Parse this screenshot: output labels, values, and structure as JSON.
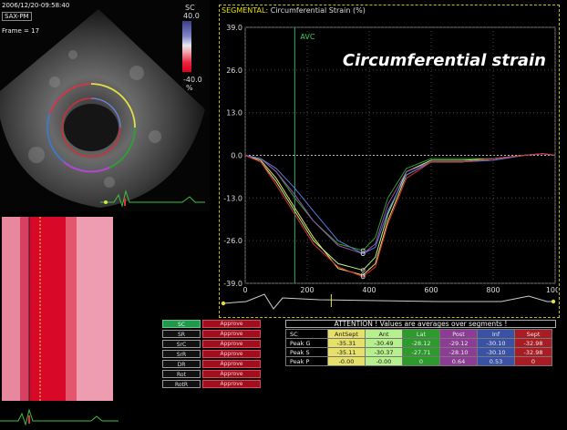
{
  "echo": {
    "timestamp": "2006/12/20-09:58:40",
    "view": "SAX-PM",
    "frame": "Frame = 17",
    "scale": {
      "label": "SC",
      "max": "40.0",
      "min": "-40.0",
      "unit": "%"
    }
  },
  "chart": {
    "header_label": "SEGMENTAL:",
    "header_title": "Circumferential Strain (%)",
    "overlay_title": "Circumferential strain",
    "marker_label": "AVC",
    "y_ticks": [
      "39.0",
      "26.0",
      "13.0",
      "0.0",
      "-13.0",
      "-26.0",
      "-39.0"
    ],
    "x_ticks": [
      "0",
      "200",
      "400",
      "600",
      "800",
      "1000"
    ]
  },
  "chart_data": {
    "type": "line",
    "title": "Circumferential Strain (%)",
    "xlim": [
      0,
      1000
    ],
    "ylim": [
      -39,
      39
    ],
    "marker_x": 160,
    "series": [
      {
        "color": "#e8e060",
        "x": [
          0,
          50,
          100,
          160,
          220,
          300,
          380,
          420,
          460,
          520,
          600,
          700,
          800,
          900,
          960,
          1000
        ],
        "y": [
          0,
          -1.5,
          -7,
          -16,
          -25,
          -34.5,
          -36.5,
          -33,
          -20,
          -6,
          -2,
          -2,
          -1,
          0,
          0.5,
          0
        ]
      },
      {
        "color": "#b6f08c",
        "x": [
          0,
          50,
          100,
          160,
          220,
          300,
          380,
          420,
          460,
          520,
          600,
          700,
          800,
          900,
          960,
          1000
        ],
        "y": [
          0,
          -2,
          -8,
          -17,
          -26,
          -33,
          -35,
          -31,
          -18,
          -5,
          -1.5,
          -1.5,
          -1,
          0,
          0.5,
          0
        ]
      },
      {
        "color": "#2ea02c",
        "x": [
          0,
          50,
          100,
          160,
          220,
          300,
          380,
          420,
          460,
          520,
          600,
          700,
          800,
          900,
          960,
          1000
        ],
        "y": [
          0,
          -1,
          -5,
          -13,
          -20,
          -27,
          -29,
          -25,
          -13,
          -4,
          -1,
          -1,
          -1,
          0,
          0.5,
          0
        ]
      },
      {
        "color": "#a050b0",
        "x": [
          0,
          50,
          100,
          160,
          220,
          300,
          380,
          420,
          460,
          520,
          600,
          700,
          800,
          900,
          960,
          1000
        ],
        "y": [
          0,
          -1,
          -5,
          -12,
          -20,
          -27.5,
          -30,
          -27,
          -15,
          -5,
          -2,
          -2,
          -1.5,
          0,
          0.5,
          0
        ]
      },
      {
        "color": "#5a7ad8",
        "x": [
          0,
          50,
          100,
          160,
          220,
          300,
          380,
          420,
          460,
          520,
          600,
          700,
          800,
          900,
          960,
          1000
        ],
        "y": [
          0,
          -1,
          -4,
          -10,
          -17,
          -26,
          -30,
          -28,
          -17,
          -6,
          -2,
          -2,
          -1.5,
          0,
          0.5,
          0
        ]
      },
      {
        "color": "#d8303a",
        "x": [
          0,
          50,
          100,
          160,
          220,
          300,
          380,
          420,
          460,
          520,
          600,
          700,
          800,
          900,
          960,
          1000
        ],
        "y": [
          0,
          -2,
          -9,
          -18,
          -27,
          -34,
          -37,
          -34,
          -21,
          -7,
          -2,
          -2,
          -1,
          0,
          0.5,
          0
        ]
      }
    ]
  },
  "segments": {
    "items": [
      {
        "name": "SC",
        "action": "Approve",
        "selected": true
      },
      {
        "name": "SR",
        "action": "Approve",
        "selected": false
      },
      {
        "name": "SrC",
        "action": "Approve",
        "selected": false
      },
      {
        "name": "SrR",
        "action": "Approve",
        "selected": false
      },
      {
        "name": "DR",
        "action": "Approve",
        "selected": false
      },
      {
        "name": "Rot",
        "action": "Approve",
        "selected": false
      },
      {
        "name": "RotR",
        "action": "Approve",
        "selected": false
      }
    ]
  },
  "attention": "ATTENTION !  Values  are averages over segments !",
  "peak_table": {
    "corner": "SC",
    "columns": [
      "AntSept",
      "Ant",
      "Lat",
      "Post",
      "Inf",
      "Sept"
    ],
    "rows": [
      {
        "label": "Peak G",
        "values": [
          "-35.31",
          "-30.49",
          "-28.12",
          "-29.12",
          "-30.10",
          "-32.98"
        ]
      },
      {
        "label": "Peak S",
        "values": [
          "-35.11",
          "-30.37",
          "-27.71",
          "-28.10",
          "-30.10",
          "-32.98"
        ]
      },
      {
        "label": "Peak P",
        "values": [
          "-0.00",
          "-0.00",
          "0",
          "0.64",
          "0.53",
          "0"
        ]
      }
    ]
  }
}
